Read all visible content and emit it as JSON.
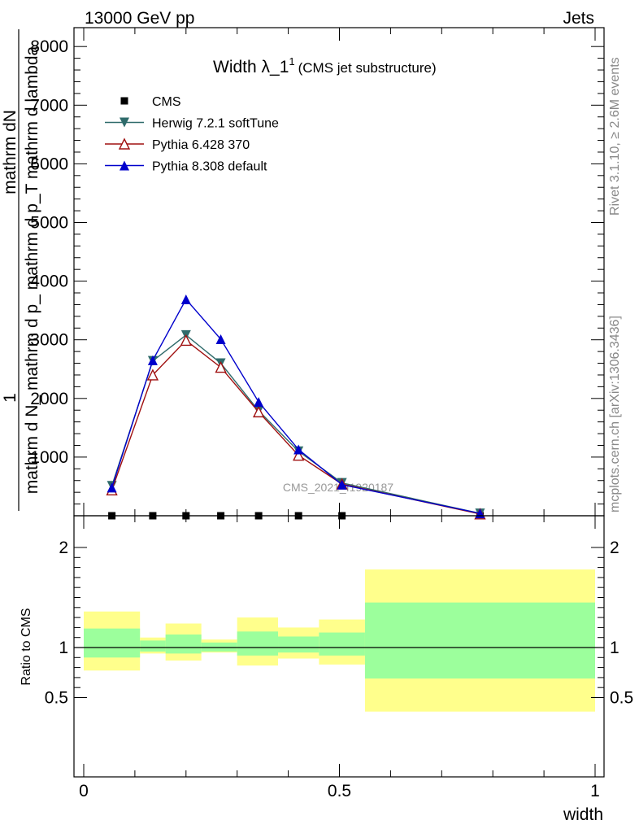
{
  "header": {
    "energy": "13000 GeV pp",
    "category": "Jets"
  },
  "side_labels": {
    "rivet": "Rivet 3.1.10, ≥ 2.6M events",
    "mcplots": "mcplots.cern.ch [arXiv:1306.3436]"
  },
  "chart_data": {
    "type": "line",
    "title": "Width λ_1",
    "title_sup": "1",
    "subtitle": "(CMS jet substructure)",
    "watermark": "CMS_2021_I1920187",
    "ylabel_main": {
      "fraction_prefix": "1",
      "numerator": "mathrm dN",
      "denominator": "mathrm d N_ mathrm d p_ mathrm d p_T mathrm d lambda"
    },
    "xlabel": "width",
    "ylabel_ratio": "Ratio to CMS",
    "xlim": [
      0,
      1
    ],
    "ylim": [
      0,
      8000
    ],
    "y_ticks": [
      1000,
      2000,
      3000,
      4000,
      5000,
      6000,
      7000,
      8000
    ],
    "y_tick_labels": [
      "1000",
      "2000",
      "3000",
      "4000",
      "5000",
      "6000",
      "7000",
      "8000"
    ],
    "x_ticks": [
      0,
      0.5,
      1
    ],
    "x_tick_labels": [
      "0",
      "0.5",
      "1"
    ],
    "ratio_ylim": [
      0.4,
      2.2
    ],
    "ratio_ticks": [
      0.5,
      1,
      2
    ],
    "ratio_tick_labels": [
      "0.5",
      "1",
      "2"
    ],
    "x": [
      0.055,
      0.135,
      0.2,
      0.268,
      0.342,
      0.42,
      0.505,
      0.775
    ],
    "series": [
      {
        "name": "CMS",
        "color": "#000000",
        "marker": "square",
        "values": [
          0,
          0,
          0,
          0,
          0,
          0,
          0,
          0
        ]
      },
      {
        "name": "Herwig 7.2.1 softTune",
        "color": "#2f6b6b",
        "marker": "triangle-down",
        "values": [
          510,
          2640,
          3080,
          2600,
          1790,
          1100,
          560,
          40
        ]
      },
      {
        "name": "Pythia 6.428 370",
        "color": "#a01010",
        "marker": "triangle-up-open",
        "values": [
          440,
          2400,
          2990,
          2530,
          1770,
          1030,
          540,
          30
        ]
      },
      {
        "name": "Pythia 8.308 default",
        "color": "#0000cc",
        "marker": "triangle-up",
        "values": [
          480,
          2650,
          3690,
          3010,
          1940,
          1130,
          530,
          40
        ]
      }
    ],
    "ratio_bands": {
      "edges": [
        0,
        0.11,
        0.16,
        0.23,
        0.3,
        0.38,
        0.46,
        0.55,
        1.0
      ],
      "yellow_low": [
        0.77,
        0.94,
        0.87,
        0.95,
        0.82,
        0.89,
        0.83,
        0.36
      ],
      "yellow_high": [
        1.36,
        1.1,
        1.24,
        1.08,
        1.3,
        1.2,
        1.28,
        1.78
      ],
      "green_low": [
        0.9,
        0.96,
        0.94,
        0.96,
        0.92,
        0.95,
        0.92,
        0.69
      ],
      "green_high": [
        1.19,
        1.07,
        1.13,
        1.05,
        1.16,
        1.11,
        1.15,
        1.45
      ],
      "yellow_color": "#ffff8c",
      "green_color": "#9cff9c"
    }
  }
}
